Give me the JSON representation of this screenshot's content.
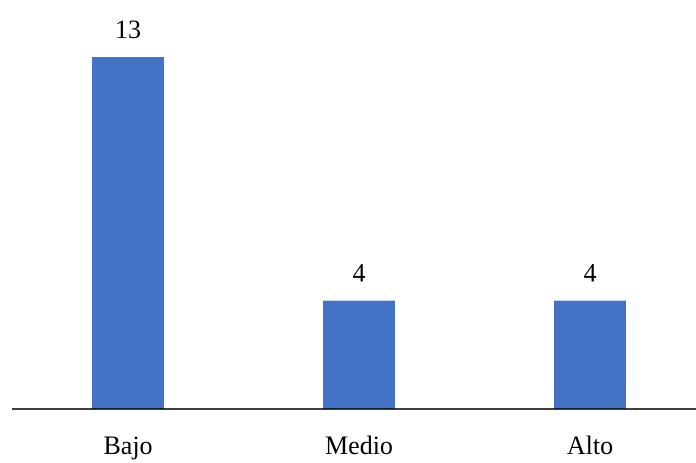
{
  "chart_data": {
    "type": "bar",
    "categories": [
      "Bajo",
      "Medio",
      "Alto"
    ],
    "values": [
      13,
      4,
      4
    ],
    "data_labels": [
      "13",
      "4",
      "4"
    ],
    "title": "",
    "xlabel": "",
    "ylabel": "",
    "ylim": [
      0,
      13
    ],
    "grid": false,
    "legend": "none",
    "bar_color": "#4472C4",
    "axis_color": "#000000"
  }
}
